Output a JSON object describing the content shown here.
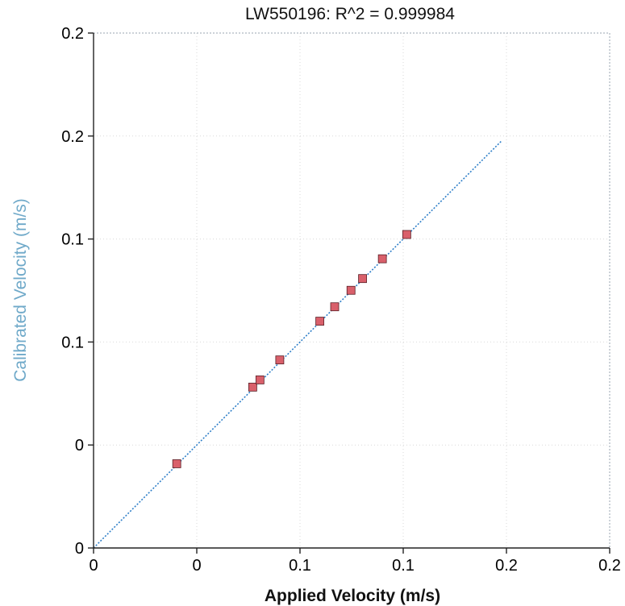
{
  "chart_data": {
    "type": "scatter",
    "title": "LW550196: R^2 = 0.999984",
    "xlabel": "Applied Velocity (m/s)",
    "ylabel": "Calibrated Velocity (m/s)",
    "xlim": [
      -0.05,
      0.2
    ],
    "ylim": [
      -0.05,
      0.2
    ],
    "x_ticks": [
      -0.05,
      0,
      0.05,
      0.1,
      0.15,
      0.2
    ],
    "x_tick_labels": [
      "0",
      "0",
      "0.1",
      "0.1",
      "0.2",
      "0.2"
    ],
    "y_ticks": [
      -0.05,
      0,
      0.05,
      0.1,
      0.15,
      0.2
    ],
    "y_tick_labels": [
      "0",
      "0",
      "0.1",
      "0.1",
      "0.2",
      "0.2"
    ],
    "grid": true,
    "points": [
      {
        "x": -0.0097,
        "y": -0.0091
      },
      {
        "x": 0.0271,
        "y": 0.0281
      },
      {
        "x": 0.0306,
        "y": 0.0316
      },
      {
        "x": 0.0402,
        "y": 0.0413
      },
      {
        "x": 0.0596,
        "y": 0.0601
      },
      {
        "x": 0.0668,
        "y": 0.0671
      },
      {
        "x": 0.0747,
        "y": 0.0751
      },
      {
        "x": 0.0803,
        "y": 0.0808
      },
      {
        "x": 0.0899,
        "y": 0.0904
      },
      {
        "x": 0.1017,
        "y": 0.1022
      }
    ],
    "fit_line": {
      "x": [
        -0.05,
        0.1476
      ],
      "y": [
        -0.05,
        0.1476
      ]
    },
    "colors": {
      "points": "#d9606b",
      "points_edge": "#5a1f26",
      "fit_line": "#2f7fc8",
      "grid": "#d9d9d9",
      "axis": "#222222",
      "ylabel": "#6fa9c9"
    }
  }
}
